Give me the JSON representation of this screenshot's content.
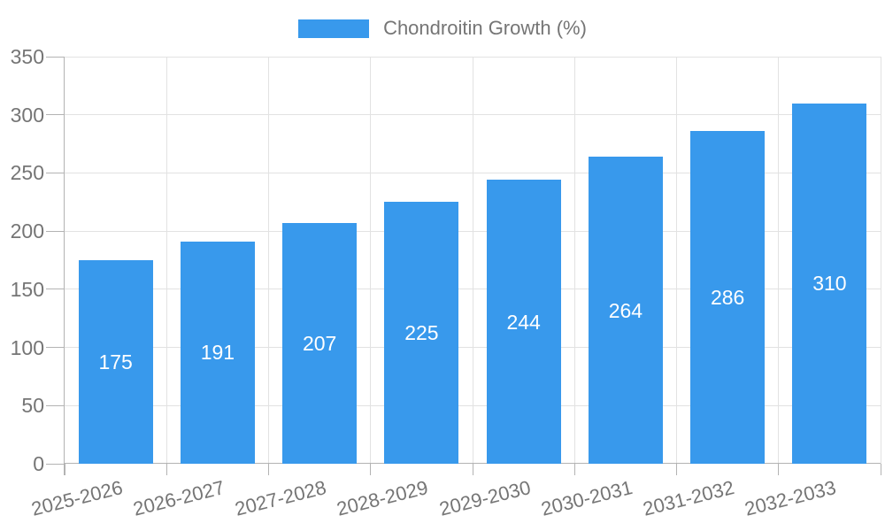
{
  "chart_data": {
    "type": "bar",
    "title": "Chondroitin Growth (%)",
    "legend": {
      "label": "Chondroitin Growth (%)",
      "position": "top"
    },
    "categories": [
      "2025-2026",
      "2026-2027",
      "2027-2028",
      "2028-2029",
      "2029-2030",
      "2030-2031",
      "2031-2032",
      "2032-2033"
    ],
    "series": [
      {
        "name": "Chondroitin Growth (%)",
        "values": [
          175,
          191,
          207,
          225,
          244,
          264,
          286,
          310
        ]
      }
    ],
    "value_labels_shown": true,
    "xlabel": "",
    "ylabel": "",
    "ylim": [
      0,
      350
    ],
    "yticks": [
      0,
      50,
      100,
      150,
      200,
      250,
      300,
      350
    ],
    "grid": true,
    "x_label_rotation_deg": -14,
    "colors": {
      "bar": "#3899EC",
      "grid": "#E2E2E2",
      "axis": "#B3B3B3",
      "tick_text": "#757575",
      "value_text": "#FFFFFF",
      "background": "#FFFFFF"
    }
  }
}
